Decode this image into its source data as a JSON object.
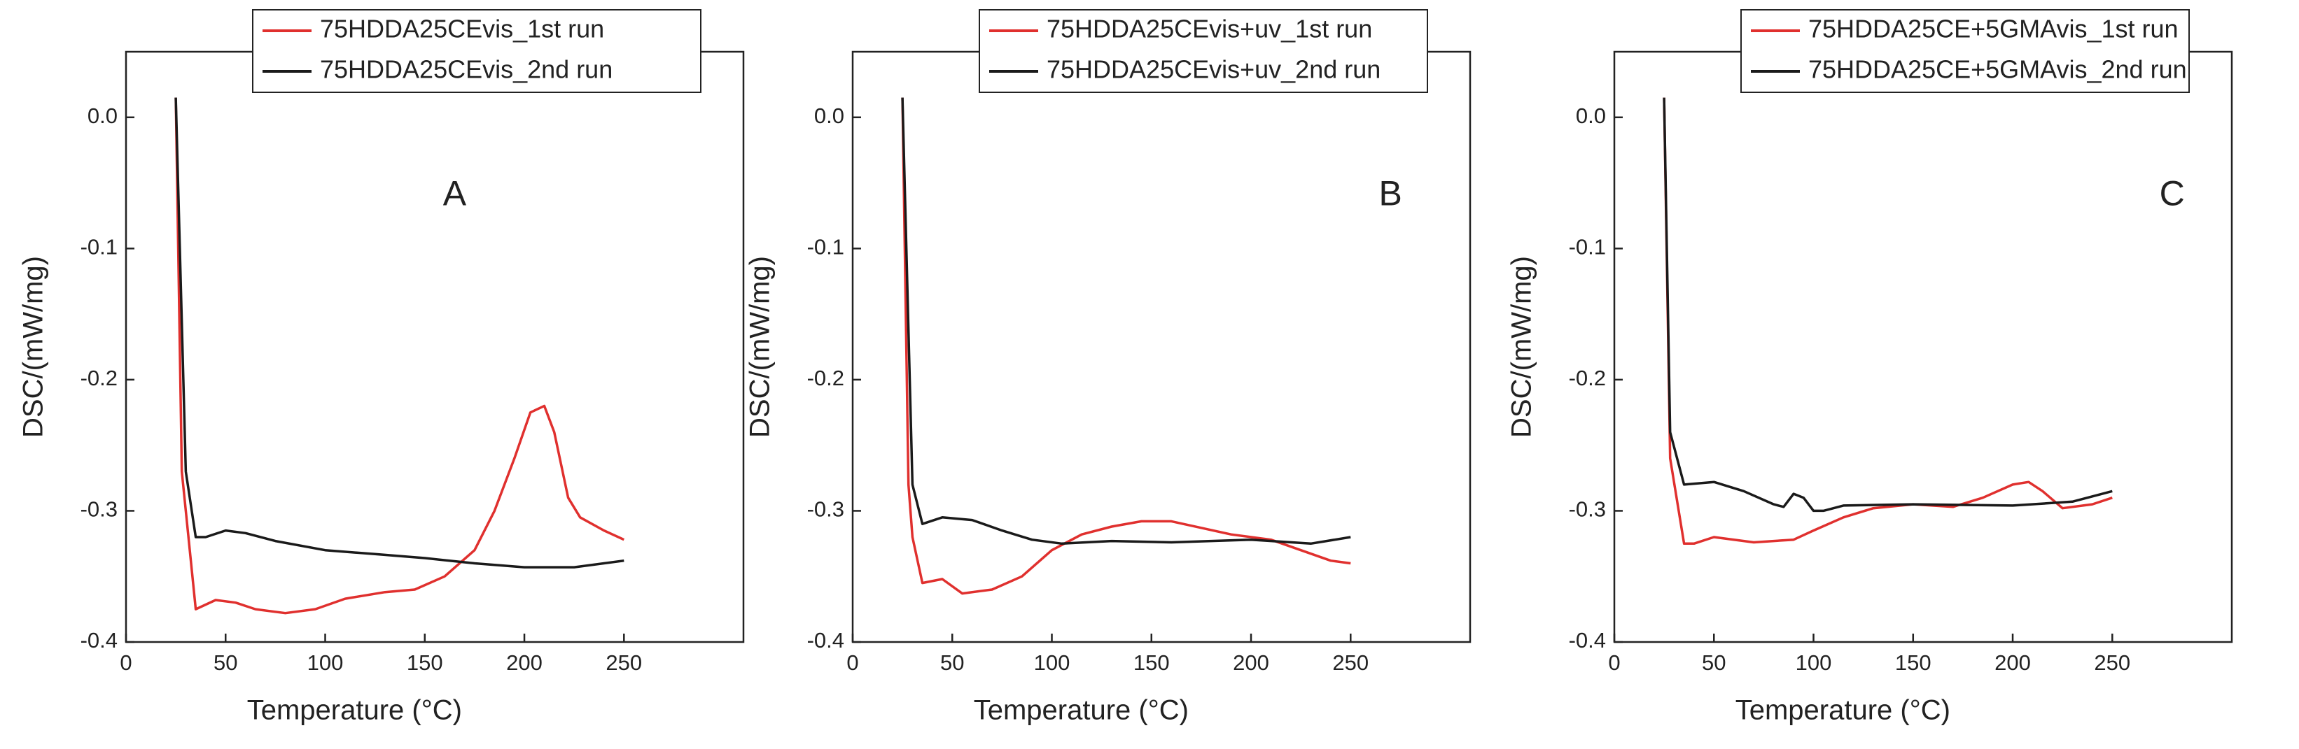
{
  "chart_data": [
    {
      "type": "line",
      "xlabel": "Temperature (°C)",
      "ylabel": "DSC/(mW/mg)",
      "xlim": [
        0,
        310
      ],
      "ylim": [
        -0.4,
        0.05
      ],
      "xticks": [
        0,
        50,
        100,
        150,
        200,
        250
      ],
      "yticks": [
        {
          "value": 0,
          "label": "0.0"
        },
        -0.1,
        -0.2,
        -0.3,
        -0.4
      ],
      "legend": "upper center",
      "annotations": [
        {
          "text": "A",
          "x": 165,
          "y": -0.06
        }
      ],
      "series": [
        {
          "name": "75HDDA25CEvis_1st run",
          "color": "#e0302e",
          "x": [
            25,
            28,
            30,
            35,
            45,
            55,
            65,
            80,
            95,
            110,
            130,
            145,
            160,
            175,
            185,
            195,
            203,
            210,
            215,
            222,
            228,
            240,
            250
          ],
          "values": [
            0.015,
            -0.27,
            -0.3,
            -0.375,
            -0.368,
            -0.37,
            -0.375,
            -0.378,
            -0.375,
            -0.367,
            -0.362,
            -0.36,
            -0.35,
            -0.33,
            -0.3,
            -0.26,
            -0.225,
            -0.22,
            -0.24,
            -0.29,
            -0.305,
            -0.315,
            -0.322
          ]
        },
        {
          "name": "75HDDA25CEvis_2nd run",
          "color": "#1a1a1a",
          "x": [
            25,
            30,
            35,
            40,
            50,
            60,
            75,
            100,
            125,
            150,
            175,
            200,
            225,
            250
          ],
          "values": [
            0.015,
            -0.27,
            -0.32,
            -0.32,
            -0.315,
            -0.317,
            -0.323,
            -0.33,
            -0.333,
            -0.336,
            -0.34,
            -0.343,
            -0.343,
            -0.338
          ]
        }
      ]
    },
    {
      "type": "line",
      "xlabel": "Temperature (°C)",
      "ylabel": "DSC/(mW/mg)",
      "xlim": [
        0,
        310
      ],
      "ylim": [
        -0.4,
        0.05
      ],
      "xticks": [
        0,
        50,
        100,
        150,
        200,
        250
      ],
      "yticks": [
        {
          "value": 0,
          "label": "0.0"
        },
        -0.1,
        -0.2,
        -0.3,
        -0.4
      ],
      "legend": "upper center",
      "annotations": [
        {
          "text": "B",
          "x": 270,
          "y": -0.06
        }
      ],
      "series": [
        {
          "name": "75HDDA25CEvis+uv_1st run",
          "color": "#e0302e",
          "x": [
            25,
            28,
            30,
            35,
            45,
            55,
            70,
            85,
            100,
            115,
            130,
            145,
            160,
            175,
            190,
            210,
            225,
            240,
            250
          ],
          "values": [
            0.015,
            -0.28,
            -0.32,
            -0.355,
            -0.352,
            -0.363,
            -0.36,
            -0.35,
            -0.33,
            -0.318,
            -0.312,
            -0.308,
            -0.308,
            -0.313,
            -0.318,
            -0.322,
            -0.33,
            -0.338,
            -0.34
          ]
        },
        {
          "name": "75HDDA25CEvis+uv_2nd run",
          "color": "#1a1a1a",
          "x": [
            25,
            30,
            35,
            45,
            60,
            75,
            90,
            105,
            130,
            160,
            200,
            230,
            250
          ],
          "values": [
            0.015,
            -0.28,
            -0.31,
            -0.305,
            -0.307,
            -0.315,
            -0.322,
            -0.325,
            -0.323,
            -0.324,
            -0.322,
            -0.325,
            -0.32
          ]
        }
      ]
    },
    {
      "type": "line",
      "xlabel": "Temperature (°C)",
      "ylabel": "DSC/(mW/mg)",
      "xlim": [
        0,
        310
      ],
      "ylim": [
        -0.4,
        0.05
      ],
      "xticks": [
        0,
        50,
        100,
        150,
        200,
        250
      ],
      "yticks": [
        {
          "value": 0,
          "label": "0.0"
        },
        -0.1,
        -0.2,
        -0.3,
        -0.4
      ],
      "legend": "upper center",
      "annotations": [
        {
          "text": "C",
          "x": 280,
          "y": -0.06
        }
      ],
      "series": [
        {
          "name": "75HDDA25CE+5GMAvis_1st run",
          "color": "#e0302e",
          "x": [
            25,
            28,
            35,
            40,
            50,
            70,
            90,
            100,
            115,
            130,
            150,
            170,
            185,
            200,
            208,
            215,
            225,
            240,
            250
          ],
          "values": [
            0.015,
            -0.26,
            -0.325,
            -0.325,
            -0.32,
            -0.324,
            -0.322,
            -0.315,
            -0.305,
            -0.298,
            -0.295,
            -0.297,
            -0.29,
            -0.28,
            -0.278,
            -0.285,
            -0.298,
            -0.295,
            -0.29
          ]
        },
        {
          "name": "75HDDA25CE+5GMAvis_2nd run",
          "color": "#1a1a1a",
          "x": [
            25,
            28,
            35,
            50,
            65,
            80,
            85,
            90,
            95,
            100,
            105,
            115,
            150,
            200,
            230,
            250
          ],
          "values": [
            0.015,
            -0.24,
            -0.28,
            -0.278,
            -0.285,
            -0.295,
            -0.297,
            -0.287,
            -0.29,
            -0.3,
            -0.3,
            -0.296,
            -0.295,
            -0.296,
            -0.293,
            -0.285
          ]
        }
      ]
    }
  ]
}
